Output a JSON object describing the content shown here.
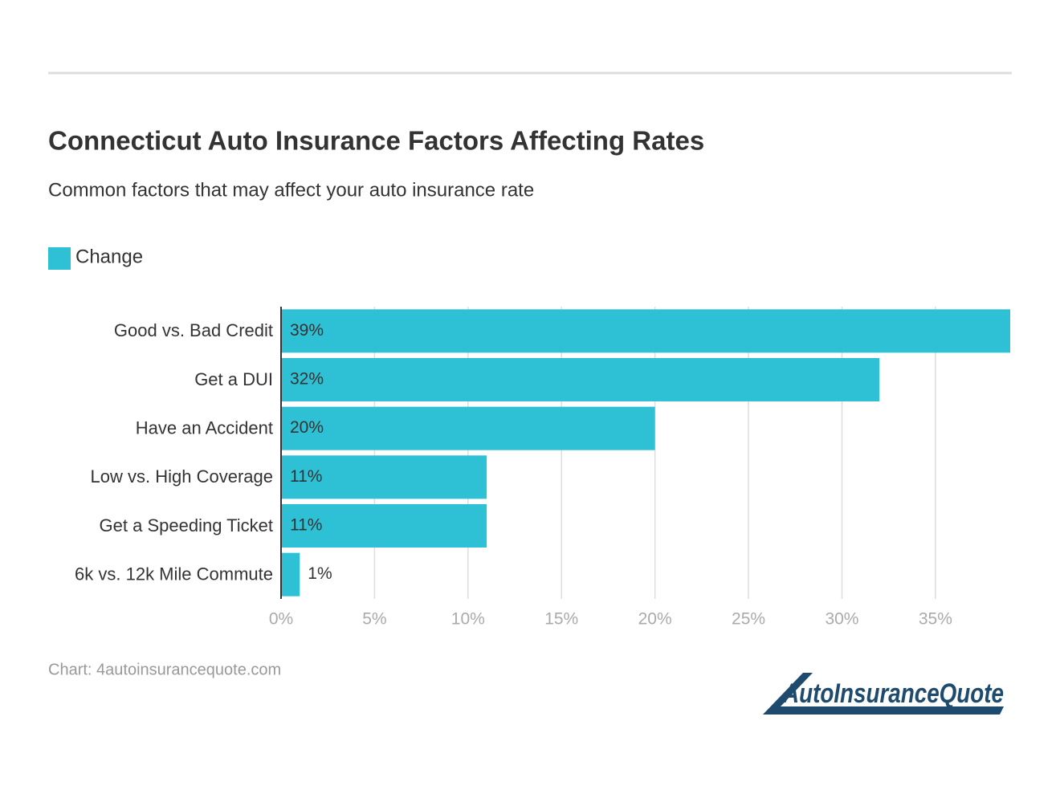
{
  "chart_data": {
    "type": "bar",
    "orientation": "horizontal",
    "title": "Connecticut Auto Insurance Factors Affecting Rates",
    "subtitle": "Common factors that may affect your auto insurance rate",
    "categories": [
      "Good vs. Bad Credit",
      "Get a DUI",
      "Have an Accident",
      "Low vs. High Coverage",
      "Get a Speeding Ticket",
      "6k vs. 12k Mile Commute"
    ],
    "series": [
      {
        "name": "Change",
        "color": "#2ec0d4",
        "values": [
          39,
          32,
          20,
          11,
          11,
          1
        ],
        "value_labels": [
          "39%",
          "32%",
          "20%",
          "11%",
          "11%",
          "1%"
        ]
      }
    ],
    "xlim": [
      0,
      39
    ],
    "xticks": [
      {
        "value": 0,
        "label": "0%"
      },
      {
        "value": 5,
        "label": "5%"
      },
      {
        "value": 10,
        "label": "10%"
      },
      {
        "value": 15,
        "label": "15%"
      },
      {
        "value": 20,
        "label": "20%"
      },
      {
        "value": 25,
        "label": "25%"
      },
      {
        "value": 30,
        "label": "30%"
      },
      {
        "value": 35,
        "label": "35%"
      }
    ],
    "grid": true,
    "legend": "top-left",
    "source": "Chart: 4autoinsurancequote.com",
    "logo": "AutoInsuranceQuote"
  }
}
